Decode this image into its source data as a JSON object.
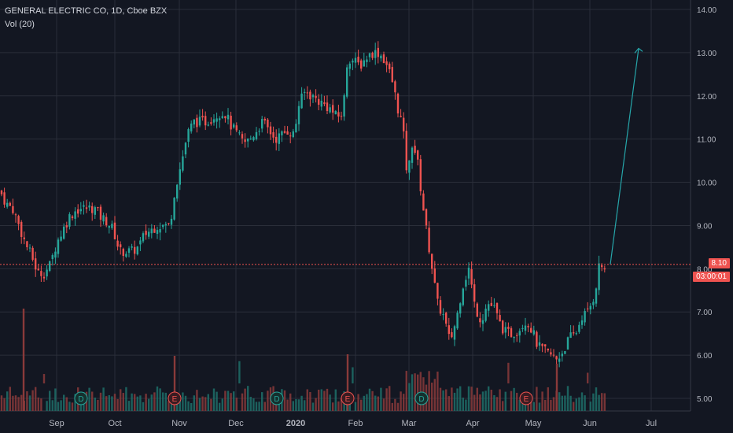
{
  "legend": {
    "title": "GENERAL ELECTRIC CO, 1D, Cboe BZX",
    "volume": "Vol (20)"
  },
  "price_tag": "8.10",
  "countdown_tag": "03:00:01",
  "colors": {
    "background": "#131722",
    "grid": "#2a2e39",
    "up": "#26a69a",
    "down": "#ef5350",
    "text": "#b2b5be",
    "arrow": "#26a6aa"
  },
  "chart_data": {
    "type": "candlestick",
    "y_axis": {
      "ticks": [
        "14.00",
        "13.00",
        "12.00",
        "11.00",
        "10.00",
        "9.00",
        "8.00",
        "7.00",
        "6.00",
        "5.00"
      ],
      "ylim": [
        4.9,
        14.1
      ]
    },
    "x_axis": {
      "labels": [
        "Sep",
        "Oct",
        "Nov",
        "Dec",
        "2020",
        "Feb",
        "Mar",
        "Apr",
        "May",
        "Jun",
        "Jul"
      ]
    },
    "last_price": 8.1,
    "events": [
      {
        "label": "D",
        "date": "Sep"
      },
      {
        "label": "E",
        "date": "Nov"
      },
      {
        "label": "D",
        "date": "Dec"
      },
      {
        "label": "E",
        "date": "Feb"
      },
      {
        "label": "D",
        "date": "Mar"
      },
      {
        "label": "E",
        "date": "May"
      }
    ],
    "close_path": [
      [
        0,
        9.8
      ],
      [
        8,
        9.5
      ],
      [
        16,
        9.4
      ],
      [
        24,
        9.0
      ],
      [
        32,
        8.6
      ],
      [
        40,
        8.3
      ],
      [
        48,
        7.9
      ],
      [
        56,
        7.9
      ],
      [
        64,
        8.1
      ],
      [
        72,
        8.6
      ],
      [
        80,
        8.9
      ],
      [
        88,
        9.2
      ],
      [
        96,
        9.35
      ],
      [
        104,
        9.4
      ],
      [
        112,
        9.4
      ],
      [
        120,
        9.4
      ],
      [
        128,
        9.2
      ],
      [
        136,
        9.1
      ],
      [
        144,
        8.9
      ],
      [
        152,
        8.4
      ],
      [
        160,
        8.4
      ],
      [
        168,
        8.4
      ],
      [
        176,
        8.5
      ],
      [
        184,
        8.8
      ],
      [
        192,
        8.9
      ],
      [
        200,
        9.0
      ],
      [
        208,
        9.0
      ],
      [
        216,
        9.0
      ],
      [
        222,
        9.8
      ],
      [
        230,
        10.4
      ],
      [
        238,
        11.1
      ],
      [
        246,
        11.4
      ],
      [
        254,
        11.4
      ],
      [
        262,
        11.4
      ],
      [
        270,
        11.5
      ],
      [
        278,
        11.6
      ],
      [
        286,
        11.6
      ],
      [
        294,
        11.3
      ],
      [
        302,
        11.1
      ],
      [
        310,
        10.9
      ],
      [
        318,
        11.0
      ],
      [
        326,
        11.2
      ],
      [
        334,
        11.4
      ],
      [
        342,
        11.2
      ],
      [
        350,
        11.0
      ],
      [
        358,
        11.1
      ],
      [
        366,
        11.2
      ],
      [
        374,
        11.1
      ],
      [
        380,
        11.8
      ],
      [
        388,
        12.1
      ],
      [
        396,
        12.0
      ],
      [
        404,
        11.9
      ],
      [
        412,
        11.8
      ],
      [
        420,
        11.7
      ],
      [
        428,
        11.5
      ],
      [
        436,
        11.6
      ],
      [
        442,
        12.9
      ],
      [
        450,
        12.8
      ],
      [
        458,
        12.7
      ],
      [
        466,
        12.9
      ],
      [
        474,
        13.0
      ],
      [
        482,
        13.0
      ],
      [
        490,
        12.8
      ],
      [
        498,
        12.4
      ],
      [
        506,
        11.7
      ],
      [
        512,
        11.3
      ],
      [
        518,
        10.1
      ],
      [
        524,
        10.9
      ],
      [
        530,
        10.6
      ],
      [
        536,
        9.7
      ],
      [
        542,
        8.9
      ],
      [
        548,
        8.2
      ],
      [
        556,
        7.2
      ],
      [
        564,
        6.9
      ],
      [
        572,
        6.3
      ],
      [
        580,
        6.8
      ],
      [
        588,
        7.6
      ],
      [
        596,
        8.0
      ],
      [
        604,
        7.1
      ],
      [
        612,
        6.8
      ],
      [
        620,
        7.2
      ],
      [
        628,
        7.1
      ],
      [
        636,
        6.7
      ],
      [
        644,
        6.5
      ],
      [
        652,
        6.5
      ],
      [
        660,
        6.6
      ],
      [
        668,
        6.8
      ],
      [
        676,
        6.6
      ],
      [
        684,
        6.2
      ],
      [
        692,
        6.1
      ],
      [
        700,
        6.0
      ],
      [
        708,
        5.9
      ],
      [
        716,
        6.1
      ],
      [
        724,
        6.4
      ],
      [
        732,
        6.5
      ],
      [
        740,
        6.9
      ],
      [
        748,
        7.0
      ],
      [
        756,
        7.4
      ],
      [
        762,
        8.1
      ],
      [
        770,
        8.0
      ]
    ],
    "projection": {
      "from": [
        776,
        8.1
      ],
      "to": [
        812,
        13.1
      ]
    }
  }
}
